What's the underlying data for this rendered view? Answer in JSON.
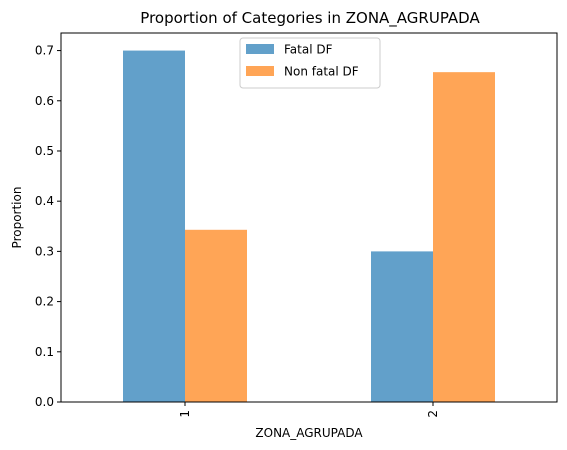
{
  "chart_data": {
    "type": "bar",
    "title": "Proportion of Categories in ZONA_AGRUPADA",
    "xlabel": "ZONA_AGRUPADA",
    "ylabel": "Proportion",
    "categories": [
      "1",
      "2"
    ],
    "series": [
      {
        "name": "Fatal DF",
        "values": [
          0.7,
          0.3
        ],
        "color": "#1f77b4"
      },
      {
        "name": "Non fatal DF",
        "values": [
          0.343,
          0.657
        ],
        "color": "#ff7f0e"
      }
    ],
    "ylim": [
      0,
      0.735
    ],
    "yticks": [
      "0.0",
      "0.1",
      "0.2",
      "0.3",
      "0.4",
      "0.5",
      "0.6",
      "0.7"
    ],
    "xtick_rotation": "vertical",
    "grid": false,
    "legend_position": "upper-center",
    "bar_alpha": 0.7
  }
}
